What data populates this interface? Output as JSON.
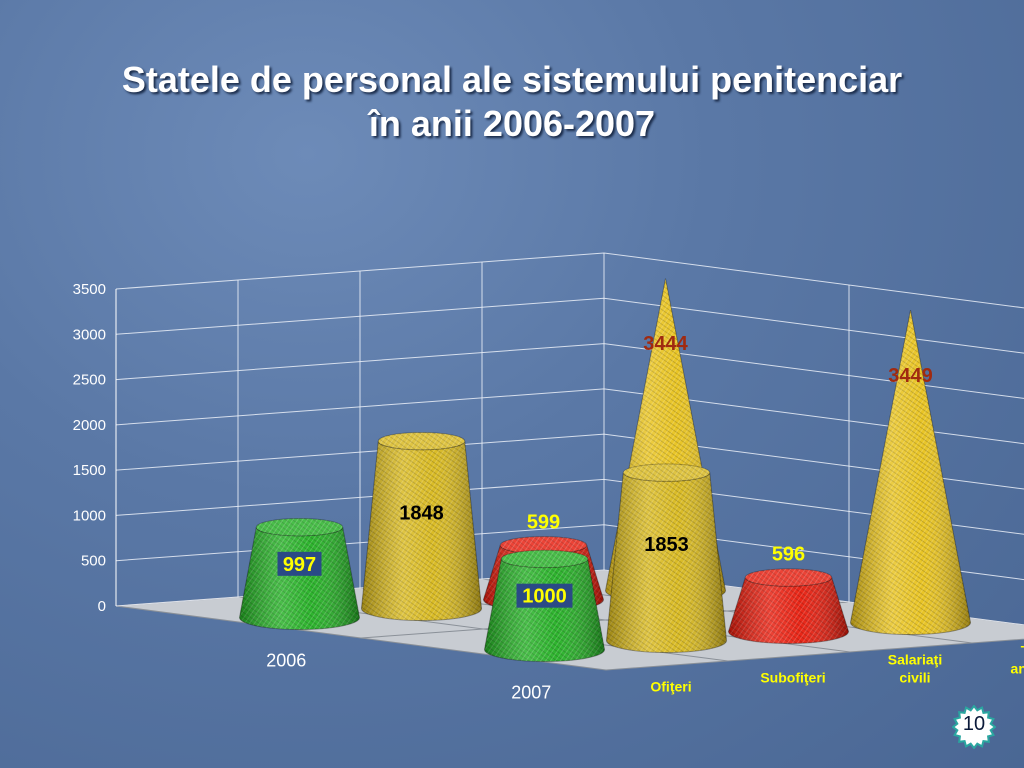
{
  "slide": {
    "title_line1": "Statele de personal ale sistemului penitenciar",
    "title_line2": "în anii 2006-2007",
    "page_number": "10"
  },
  "chart_data": {
    "type": "bar",
    "style": "3d-cones-and-truncated-cones",
    "categories": [
      "Ofiţeri",
      "Subofiţeri",
      "Salariaţi civili",
      "Total angajaţi"
    ],
    "category_labels_display": [
      [
        "Ofiţeri"
      ],
      [
        "Subofiţeri"
      ],
      [
        "Salariaţi",
        "civili"
      ],
      [
        "Total",
        "angajaţi"
      ]
    ],
    "series": [
      {
        "name": "2006",
        "values": [
          997,
          1848,
          599,
          3444
        ]
      },
      {
        "name": "2007",
        "values": [
          1000,
          1853,
          596,
          3449
        ]
      }
    ],
    "data_labels": [
      [
        "997",
        "1848",
        "599",
        "3444"
      ],
      [
        "1000",
        "1853",
        "596",
        "3449"
      ]
    ],
    "ylim": [
      0,
      3500
    ],
    "yticks": [
      "0",
      "500",
      "1000",
      "1500",
      "2000",
      "2500",
      "3000",
      "3500"
    ],
    "grid": true,
    "colors": {
      "Ofiţeri": "#22b022",
      "Subofiţeri": "#d8b81a",
      "Salariaţi civili": "#e81a0a",
      "Total angajaţi": "#e8c21a",
      "category_label": "#ffff00",
      "label_dark": "#000000",
      "label_yellow": "#ffff00",
      "label_brown": "#a02a10",
      "label_box": "#2a4a86"
    }
  }
}
